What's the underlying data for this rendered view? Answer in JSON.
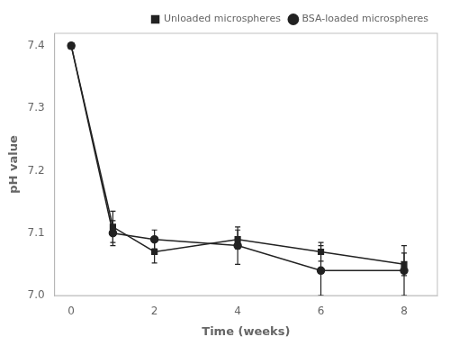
{
  "chart_data": {
    "type": "line",
    "x": [
      0,
      1,
      2,
      4,
      6,
      8
    ],
    "series": [
      {
        "name": "Unloaded microspheres",
        "color": "#222222",
        "marker": "square",
        "values": [
          7.4,
          7.11,
          7.07,
          7.09,
          7.07,
          7.05
        ],
        "errors": [
          0.0,
          0.025,
          0.018,
          0.015,
          0.015,
          0.018
        ]
      },
      {
        "name": "BSA-loaded microspheres",
        "color": "#222222",
        "marker": "circle",
        "values": [
          7.4,
          7.1,
          7.09,
          7.08,
          7.04,
          7.04
        ],
        "errors": [
          0.0,
          0.02,
          0.015,
          0.03,
          0.04,
          0.04
        ]
      }
    ],
    "xlabel": "Time (weeks)",
    "ylabel": "pH value",
    "xlim": [
      -0.4,
      8.8
    ],
    "ylim": [
      7.0,
      7.42
    ],
    "xticks": [
      0,
      2,
      4,
      6,
      8
    ],
    "yticks": [
      {
        "value": 7.0,
        "label": "7.0"
      },
      7.1,
      7.2,
      7.3,
      7.4
    ],
    "grid": false,
    "legend": "upper right"
  }
}
